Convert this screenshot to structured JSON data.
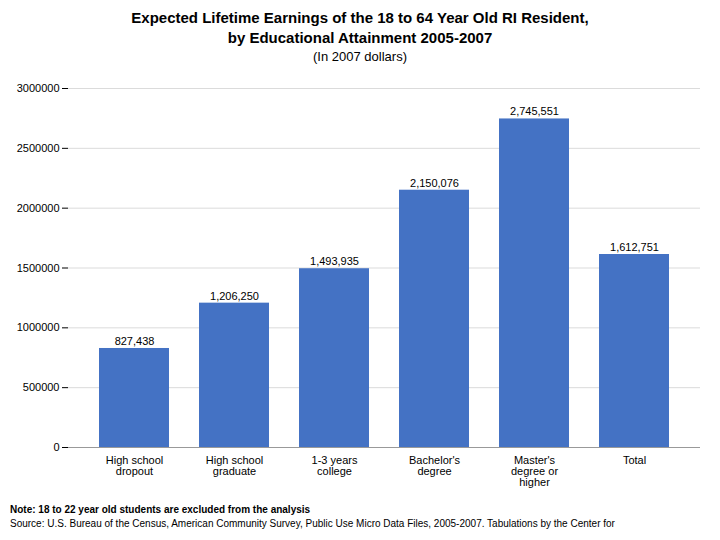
{
  "chart_data": {
    "type": "bar",
    "title": "Expected Lifetime Earnings of the 18 to 64 Year Old RI Resident,\nby Educational Attainment 2005-2007",
    "subtitle": "(In 2007 dollars)",
    "categories": [
      "High school\ndropout",
      "High school\ngraduate",
      "1-3 years\ncollege",
      "Bachelor's\ndegree",
      "Master's\ndegree or\nhigher",
      "Total"
    ],
    "values": [
      827438,
      1206250,
      1493935,
      2150076,
      2745551,
      1612751
    ],
    "value_labels": [
      "827,438",
      "1,206,250",
      "1,493,935",
      "2,150,076",
      "2,745,551",
      "1,612,751"
    ],
    "data_labels": true,
    "color": "#4472C4",
    "ylim": [
      0,
      3000000
    ],
    "yticks": [
      0,
      500000,
      1000000,
      1500000,
      2000000,
      2500000,
      3000000
    ],
    "grid": true,
    "annotations": [
      "Note: 18 to 22 year old students are excluded from the analysis",
      "Source: U.S. Bureau of the Census, American Community Survey, Public Use Micro Data Files, 2005-2007.  Tabulations by the Center for"
    ]
  }
}
